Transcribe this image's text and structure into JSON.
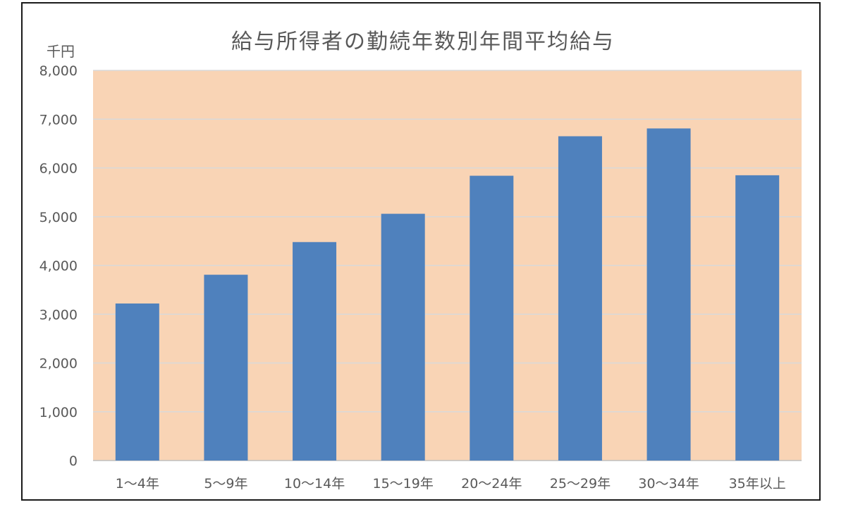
{
  "chart_data": {
    "type": "bar",
    "title": "給与所得者の勤続年数別年間平均給与",
    "unit_label": "千円",
    "categories": [
      "1～4年",
      "5～9年",
      "10～14年",
      "15～19年",
      "20～24年",
      "25～29年",
      "30～34年",
      "35年以上"
    ],
    "series": [
      {
        "values": [
          3220,
          3810,
          4480,
          5060,
          5840,
          6650,
          6810,
          5850
        ]
      }
    ],
    "ylim": [
      0,
      8000
    ],
    "yticks": [
      "0",
      "1,000",
      "2,000",
      "3,000",
      "4,000",
      "5,000",
      "6,000",
      "7,000",
      "8,000"
    ],
    "grid": true,
    "legend": "none",
    "colors": {
      "bar": "#4f81bd",
      "plot_bg": "#f9d4b5",
      "grid": "#d9d9d9",
      "text": "#595959"
    }
  }
}
